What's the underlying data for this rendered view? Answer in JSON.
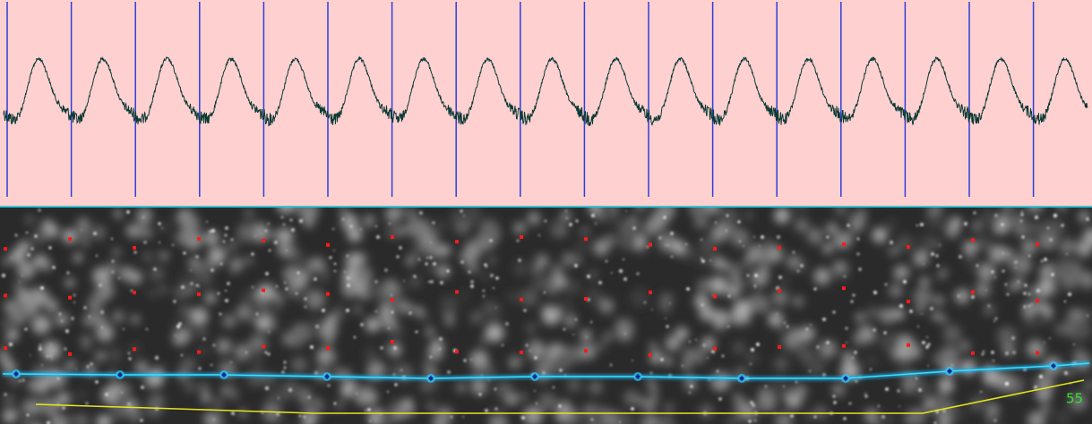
{
  "overlay": {
    "label": "55"
  }
}
